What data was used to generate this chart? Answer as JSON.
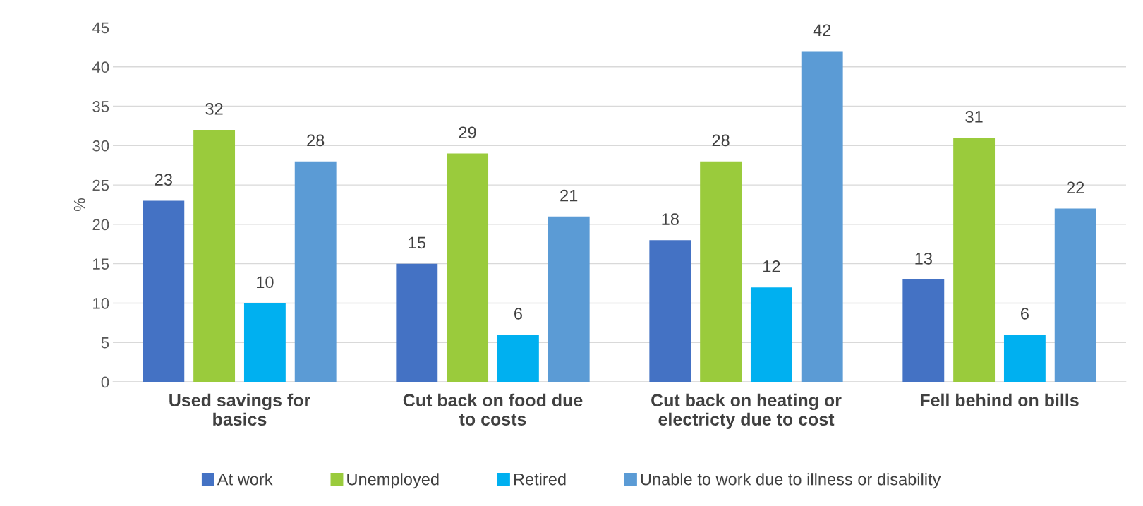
{
  "chart_data": {
    "type": "bar",
    "ylabel": "%",
    "categories": [
      "Used savings for\nbasics",
      "Cut back on food due\nto costs",
      "Cut back on heating or\nelectricty due to cost",
      "Fell behind on bills"
    ],
    "series": [
      {
        "name": "At work",
        "color": "#4472c4",
        "values": [
          23,
          15,
          18,
          13
        ]
      },
      {
        "name": "Unemployed",
        "color": "#9acb3c",
        "values": [
          32,
          29,
          28,
          31
        ]
      },
      {
        "name": "Retired",
        "color": "#00b0f0",
        "values": [
          10,
          6,
          12,
          6
        ]
      },
      {
        "name": "Unable to work due to illness or disability",
        "color": "#5b9bd5",
        "values": [
          28,
          21,
          42,
          22
        ]
      }
    ],
    "ylim": [
      0,
      45
    ],
    "yticks": [
      0,
      5,
      10,
      15,
      20,
      25,
      30,
      35,
      40,
      45
    ],
    "grid": "y",
    "legend": "bottom",
    "data_labels": true
  }
}
